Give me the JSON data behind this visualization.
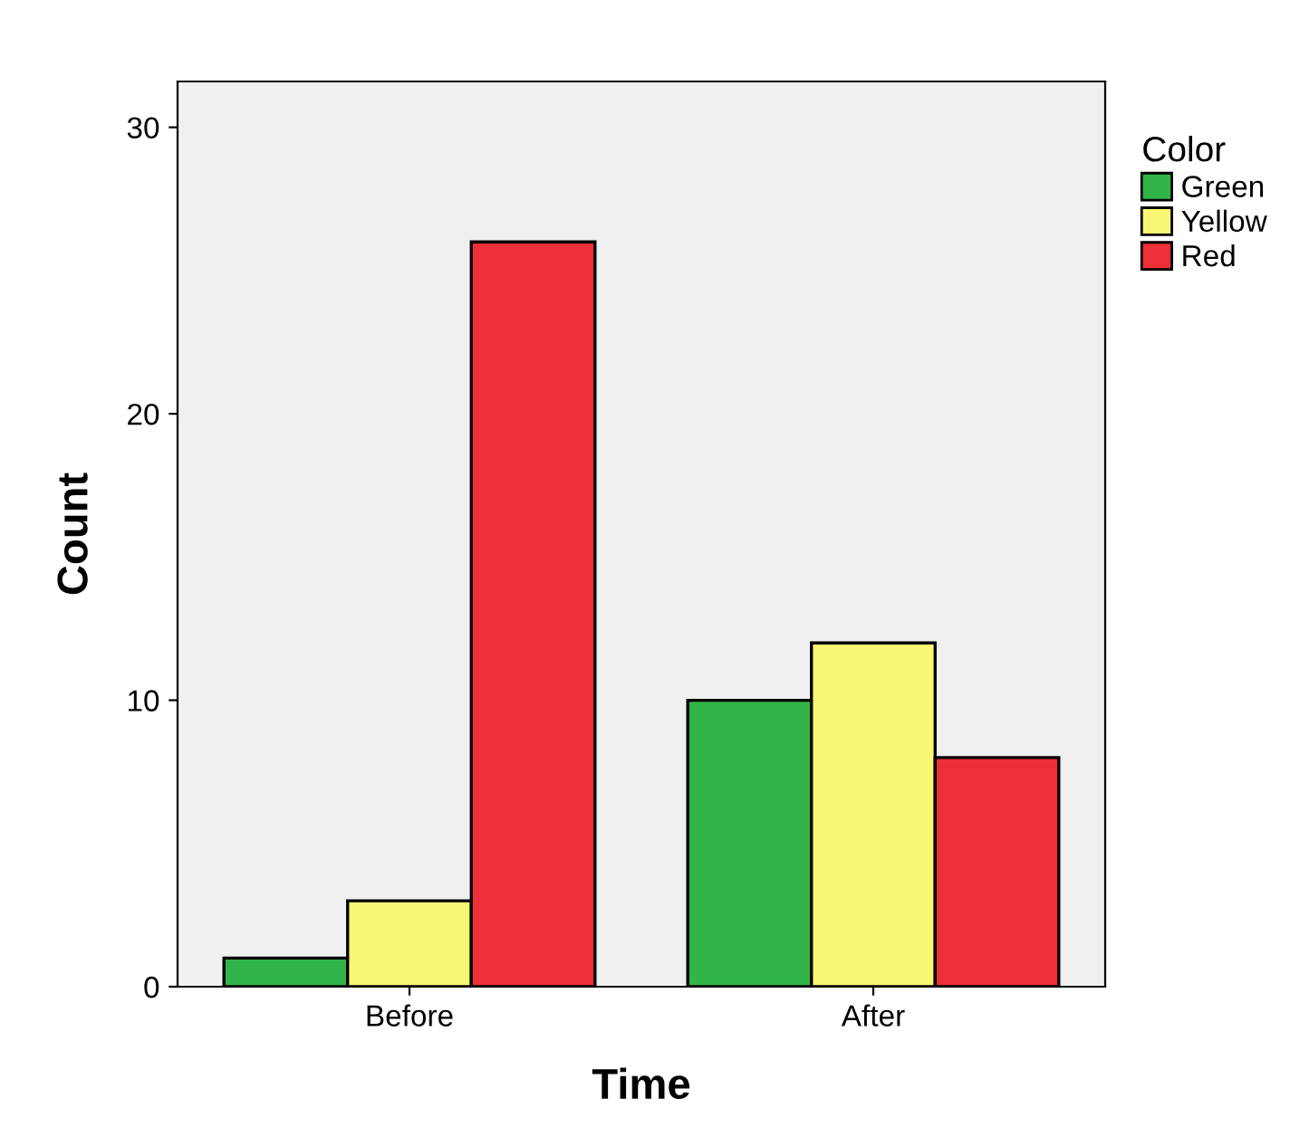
{
  "chart_data": {
    "type": "bar",
    "xlabel": "Time",
    "ylabel": "Count",
    "legend_title": "Color",
    "categories": [
      "Before",
      "After"
    ],
    "series": [
      {
        "name": "Green",
        "color": "#31b548",
        "values": [
          1,
          10
        ]
      },
      {
        "name": "Yellow",
        "color": "#fbf673",
        "values": [
          3,
          12
        ]
      },
      {
        "name": "Red",
        "color": "#ee2f37",
        "values": [
          26,
          8
        ]
      }
    ],
    "ylim": [
      0,
      31.6
    ],
    "yticks": [
      0,
      10,
      20,
      30
    ],
    "grid": false,
    "legend": "right"
  }
}
